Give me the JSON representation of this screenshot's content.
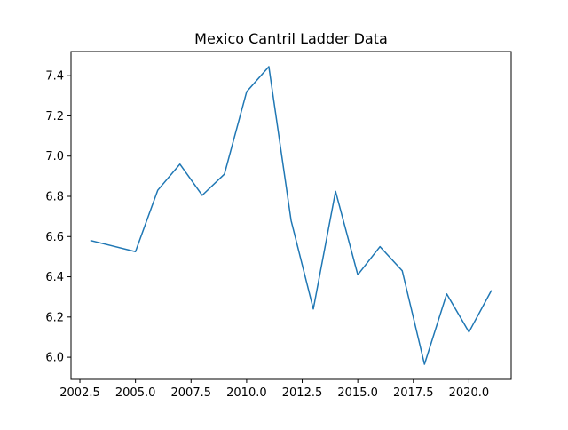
{
  "chart_data": {
    "type": "line",
    "title": "Mexico Cantril Ladder Data",
    "xlabel": "",
    "ylabel": "",
    "xlim": [
      2002.1,
      2021.9
    ],
    "ylim": [
      5.89,
      7.52
    ],
    "x_ticks": [
      2002.5,
      2005.0,
      2007.5,
      2010.0,
      2012.5,
      2015.0,
      2017.5,
      2020.0
    ],
    "x_tick_labels": [
      "2002.5",
      "2005.0",
      "2007.5",
      "2010.0",
      "2012.5",
      "2015.0",
      "2017.5",
      "2020.0"
    ],
    "y_ticks": [
      6.0,
      6.2,
      6.4,
      6.6,
      6.8,
      7.0,
      7.2,
      7.4
    ],
    "y_tick_labels": [
      "6.0",
      "6.2",
      "6.4",
      "6.6",
      "6.8",
      "7.0",
      "7.2",
      "7.4"
    ],
    "grid": false,
    "legend": "none",
    "series": [
      {
        "color": "#1f77b4",
        "x": [
          2003,
          2005,
          2006,
          2007,
          2008,
          2009,
          2010,
          2011,
          2012,
          2013,
          2014,
          2015,
          2016,
          2017,
          2018,
          2019,
          2020,
          2021
        ],
        "y": [
          6.58,
          6.525,
          6.83,
          6.96,
          6.805,
          6.91,
          7.32,
          7.445,
          6.68,
          6.24,
          6.825,
          6.41,
          6.55,
          6.43,
          5.965,
          6.315,
          6.125,
          6.33
        ]
      }
    ]
  }
}
